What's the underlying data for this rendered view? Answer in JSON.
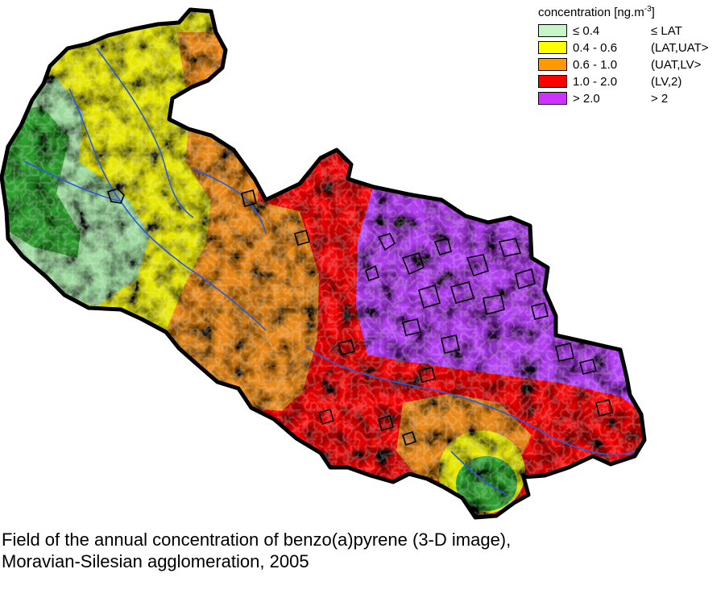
{
  "legend": {
    "title_prefix": "concentration [ng.m",
    "title_exponent": "-3",
    "title_suffix": "]",
    "items": [
      {
        "range": "≤ 0.4",
        "class": "≤ LAT",
        "color": "#c8f5c8"
      },
      {
        "range": "0.4 - 0.6",
        "class": "(LAT,UAT>",
        "color": "#ffff00"
      },
      {
        "range": "0.6 - 1.0",
        "class": "(UAT,LV>",
        "color": "#ff9900"
      },
      {
        "range": "1.0 - 2.0",
        "class": "(LV,2)",
        "color": "#ff0000"
      },
      {
        "range": "> 2.0",
        "class": "> 2",
        "color": "#cc33ff"
      }
    ]
  },
  "caption": {
    "line1": "Field of the annual concentration of benzo(a)pyrene (3-D image),",
    "line2": "Moravian-Silesian agglomeration, 2005"
  },
  "map_colors": {
    "green_dark": "#2e9e2e",
    "green_light": "#9ed99e",
    "yellow": "#e6e600",
    "orange": "#e8891a",
    "red": "#f01010",
    "purple": "#b040f0",
    "boundary": "#000000",
    "rivers": "#2a5ad8"
  }
}
